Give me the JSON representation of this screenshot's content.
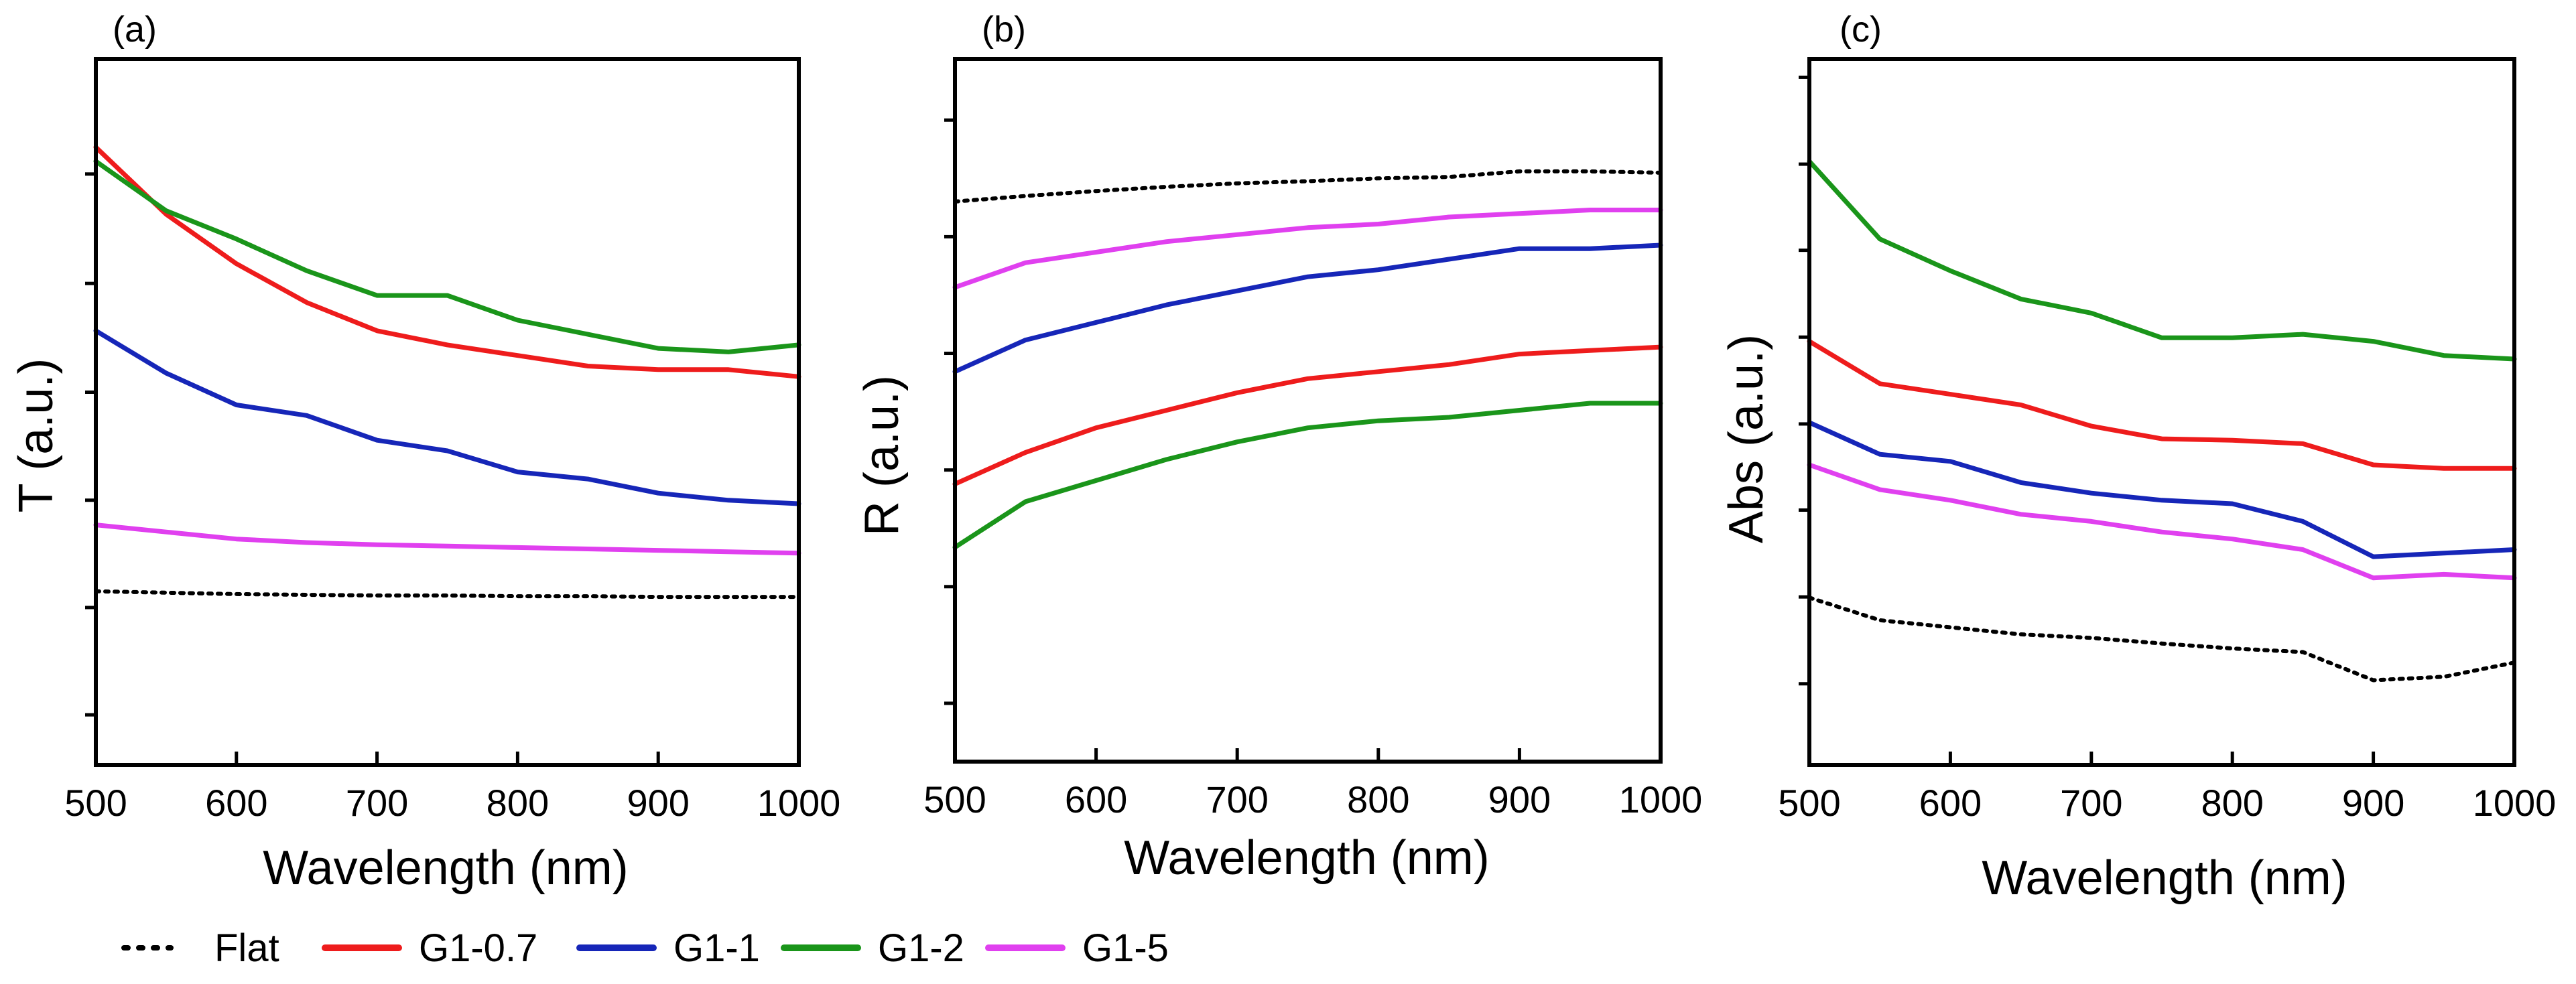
{
  "legend": [
    {
      "label": "Flat",
      "color": "#000000",
      "dashed": true
    },
    {
      "label": "G1-0.7",
      "color": "#ee1c1c",
      "dashed": false
    },
    {
      "label": "G1-1",
      "color": "#1626b8",
      "dashed": false
    },
    {
      "label": "G1-2",
      "color": "#1a951a",
      "dashed": false
    },
    {
      "label": "G1-5",
      "color": "#e040ef",
      "dashed": false
    }
  ],
  "chart_data": [
    {
      "type": "line",
      "panel_label": "(a)",
      "xlabel": "Wavelength (nm)",
      "ylabel": "T (a.u.)",
      "xlim": [
        500,
        1000
      ],
      "ylim": [
        0,
        1
      ],
      "x_ticks": [
        "500",
        "600",
        "700",
        "800",
        "900",
        "1000"
      ],
      "y_ticks_unlabeled": [
        0.071,
        0.223,
        0.375,
        0.528,
        0.682,
        0.837
      ],
      "x": [
        500,
        550,
        600,
        650,
        700,
        750,
        800,
        850,
        900,
        950,
        1000
      ],
      "series": [
        {
          "name": "Flat",
          "values": [
            0.246,
            0.244,
            0.242,
            0.241,
            0.24,
            0.24,
            0.239,
            0.239,
            0.238,
            0.238,
            0.238
          ]
        },
        {
          "name": "G1-0.7",
          "values": [
            0.875,
            0.78,
            0.71,
            0.655,
            0.615,
            0.595,
            0.58,
            0.565,
            0.56,
            0.56,
            0.55
          ]
        },
        {
          "name": "G1-1",
          "values": [
            0.615,
            0.555,
            0.51,
            0.495,
            0.46,
            0.445,
            0.415,
            0.405,
            0.385,
            0.375,
            0.37
          ]
        },
        {
          "name": "G1-2",
          "values": [
            0.855,
            0.785,
            0.745,
            0.7,
            0.665,
            0.665,
            0.63,
            0.61,
            0.59,
            0.585,
            0.595
          ]
        },
        {
          "name": "G1-5",
          "values": [
            0.34,
            0.33,
            0.32,
            0.315,
            0.312,
            0.31,
            0.308,
            0.306,
            0.304,
            0.302,
            0.3
          ]
        }
      ]
    },
    {
      "type": "line",
      "panel_label": "(b)",
      "xlabel": "Wavelength (nm)",
      "ylabel": "R (a.u.)",
      "xlim": [
        500,
        1000
      ],
      "ylim": [
        0,
        1
      ],
      "x_ticks": [
        "500",
        "600",
        "700",
        "800",
        "900",
        "1000"
      ],
      "y_ticks_unlabeled": [
        0.083,
        0.249,
        0.415,
        0.581,
        0.747,
        0.913
      ],
      "x": [
        500,
        550,
        600,
        650,
        700,
        750,
        800,
        850,
        900,
        950,
        1000
      ],
      "series": [
        {
          "name": "Flat",
          "values": [
            0.797,
            0.805,
            0.812,
            0.818,
            0.823,
            0.826,
            0.83,
            0.832,
            0.84,
            0.84,
            0.838
          ]
        },
        {
          "name": "G1-0.7",
          "values": [
            0.395,
            0.44,
            0.475,
            0.5,
            0.525,
            0.545,
            0.555,
            0.565,
            0.58,
            0.585,
            0.59
          ]
        },
        {
          "name": "G1-1",
          "values": [
            0.555,
            0.6,
            0.625,
            0.65,
            0.67,
            0.69,
            0.7,
            0.715,
            0.73,
            0.73,
            0.735
          ]
        },
        {
          "name": "G1-2",
          "values": [
            0.305,
            0.37,
            0.4,
            0.43,
            0.455,
            0.475,
            0.485,
            0.49,
            0.5,
            0.51,
            0.51
          ]
        },
        {
          "name": "G1-5",
          "values": [
            0.675,
            0.71,
            0.725,
            0.74,
            0.75,
            0.76,
            0.765,
            0.775,
            0.78,
            0.785,
            0.785
          ]
        }
      ]
    },
    {
      "type": "line",
      "panel_label": "(c)",
      "xlabel": "Wavelength (nm)",
      "ylabel": "Abs (a.u.)",
      "xlim": [
        500,
        1000
      ],
      "ylim": [
        0,
        1
      ],
      "x_ticks": [
        "500",
        "600",
        "700",
        "800",
        "900",
        "1000"
      ],
      "y_ticks_unlabeled": [
        0.115,
        0.238,
        0.361,
        0.483,
        0.606,
        0.729,
        0.851,
        0.974
      ],
      "x": [
        500,
        550,
        600,
        650,
        700,
        750,
        800,
        850,
        900,
        950,
        1000
      ],
      "series": [
        {
          "name": "Flat",
          "values": [
            0.237,
            0.205,
            0.195,
            0.185,
            0.18,
            0.172,
            0.165,
            0.16,
            0.12,
            0.125,
            0.145
          ]
        },
        {
          "name": "G1-0.7",
          "values": [
            0.6,
            0.54,
            0.525,
            0.51,
            0.48,
            0.462,
            0.46,
            0.455,
            0.425,
            0.42,
            0.42
          ]
        },
        {
          "name": "G1-1",
          "values": [
            0.485,
            0.44,
            0.43,
            0.4,
            0.385,
            0.375,
            0.37,
            0.345,
            0.295,
            0.3,
            0.305
          ]
        },
        {
          "name": "G1-2",
          "values": [
            0.855,
            0.745,
            0.7,
            0.66,
            0.64,
            0.605,
            0.605,
            0.61,
            0.6,
            0.58,
            0.575
          ]
        },
        {
          "name": "G1-5",
          "values": [
            0.425,
            0.39,
            0.375,
            0.355,
            0.345,
            0.33,
            0.32,
            0.305,
            0.265,
            0.27,
            0.265
          ]
        }
      ]
    }
  ]
}
